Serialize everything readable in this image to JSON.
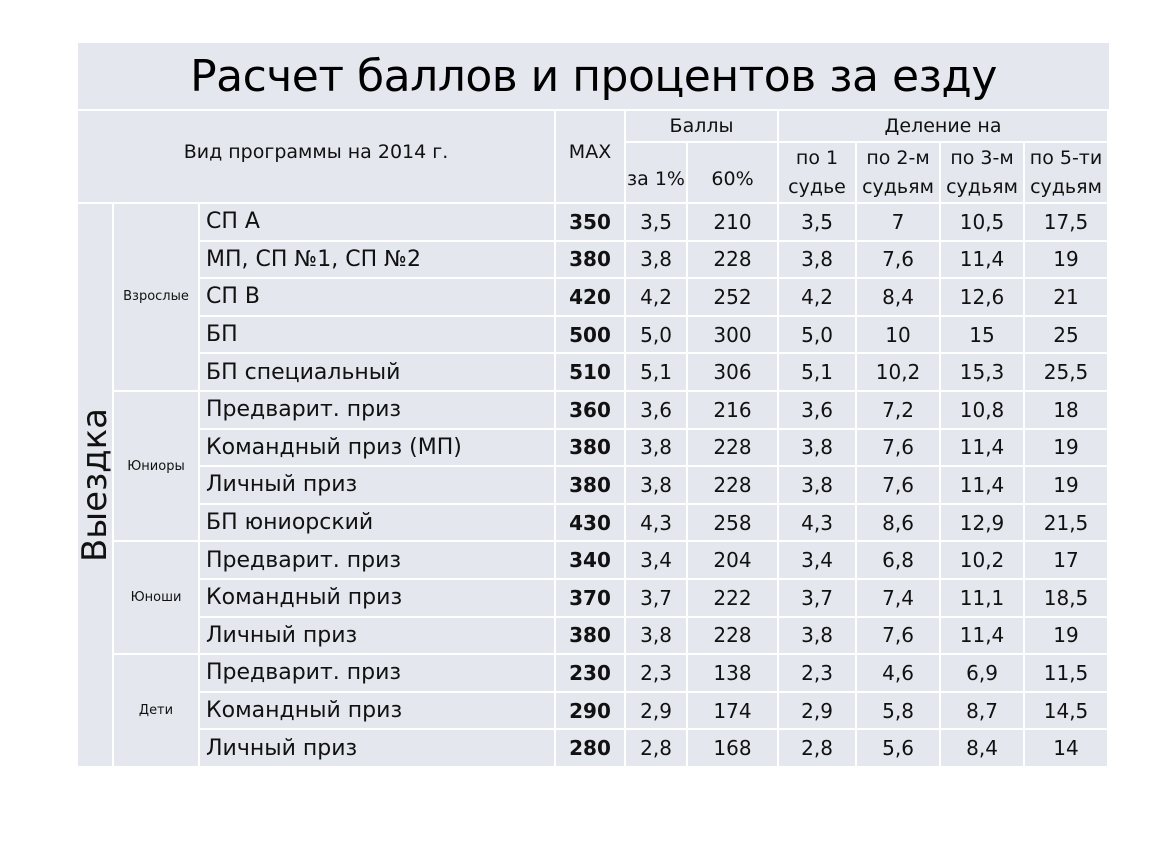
{
  "title": "Расчет баллов и процентов за езду",
  "header": {
    "program_type": "Вид программы на 2014 г.",
    "max": "MAX",
    "points": "Баллы",
    "per_1pct": "за 1%",
    "pct60": "60%",
    "division": "Деление на",
    "judge1_a": "по 1",
    "judge1_b": "судье",
    "judge2_a": "по 2-м",
    "judge2_b": "судьям",
    "judge3_a": "по 3-м",
    "judge3_b": "судьям",
    "judge5_a": "по 5-ти",
    "judge5_b": "судьям"
  },
  "section": "Выездка",
  "groups": [
    {
      "name": "Взрослые",
      "rows": [
        [
          "СП А",
          "350",
          "3,5",
          "210",
          "3,5",
          "7",
          "10,5",
          "17,5"
        ],
        [
          "МП, СП №1, СП №2",
          "380",
          "3,8",
          "228",
          "3,8",
          "7,6",
          "11,4",
          "19"
        ],
        [
          "СП В",
          "420",
          "4,2",
          "252",
          "4,2",
          "8,4",
          "12,6",
          "21"
        ],
        [
          "БП",
          "500",
          "5,0",
          "300",
          "5,0",
          "10",
          "15",
          "25"
        ],
        [
          "БП специальный",
          "510",
          "5,1",
          "306",
          "5,1",
          "10,2",
          "15,3",
          "25,5"
        ]
      ]
    },
    {
      "name": "Юниоры",
      "rows": [
        [
          "Предварит. приз",
          "360",
          "3,6",
          "216",
          "3,6",
          "7,2",
          "10,8",
          "18"
        ],
        [
          "Командный приз (МП)",
          "380",
          "3,8",
          "228",
          "3,8",
          "7,6",
          "11,4",
          "19"
        ],
        [
          "Личный приз",
          "380",
          "3,8",
          "228",
          "3,8",
          "7,6",
          "11,4",
          "19"
        ],
        [
          "БП юниорский",
          "430",
          "4,3",
          "258",
          "4,3",
          "8,6",
          "12,9",
          "21,5"
        ]
      ]
    },
    {
      "name": "Юноши",
      "rows": [
        [
          "Предварит. приз",
          "340",
          "3,4",
          "204",
          "3,4",
          "6,8",
          "10,2",
          "17"
        ],
        [
          "Командный приз",
          "370",
          "3,7",
          "222",
          "3,7",
          "7,4",
          "11,1",
          "18,5"
        ],
        [
          "Личный приз",
          "380",
          "3,8",
          "228",
          "3,8",
          "7,6",
          "11,4",
          "19"
        ]
      ]
    },
    {
      "name": "Дети",
      "rows": [
        [
          "Предварит. приз",
          "230",
          "2,3",
          "138",
          "2,3",
          "4,6",
          "6,9",
          "11,5"
        ],
        [
          "Командный приз",
          "290",
          "2,9",
          "174",
          "2,9",
          "5,8",
          "8,7",
          "14,5"
        ],
        [
          "Личный приз",
          "280",
          "2,8",
          "168",
          "2,8",
          "5,6",
          "8,4",
          "14"
        ]
      ]
    }
  ]
}
